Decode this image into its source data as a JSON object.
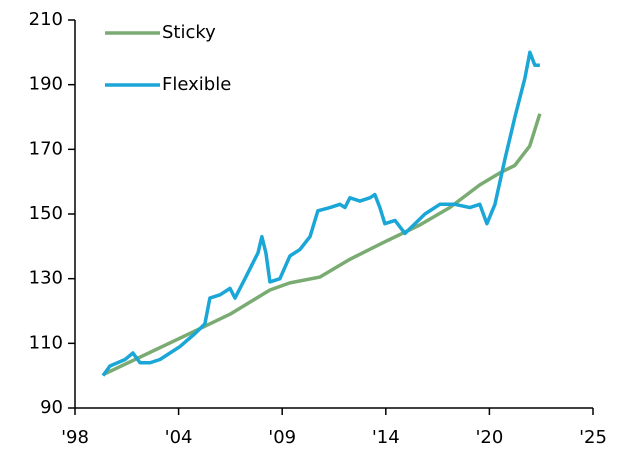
{
  "chart_data": {
    "type": "line",
    "series": [
      {
        "name": "Sticky",
        "color": "#7aab72",
        "x": [
          1999.46,
          2003.47,
          2006.08,
          2008.16,
          2009.2,
          2010.77,
          2012.33,
          2014.15,
          2015.97,
          2017.54,
          2019.1,
          2020.14,
          2020.92,
          2021.7,
          2022.23
        ],
        "values": [
          100.3,
          111.6,
          119,
          126.5,
          128.7,
          130.5,
          136,
          141.4,
          146.6,
          152,
          159,
          162.7,
          165,
          171,
          181
        ]
      },
      {
        "name": "Flexible",
        "color": "#1aa6d6",
        "x": [
          1999.46,
          1999.82,
          2000.61,
          2001.02,
          2001.39,
          2001.91,
          2002.43,
          2002.95,
          2003.47,
          2004.25,
          2004.77,
          2005.03,
          2005.56,
          2006.08,
          2006.34,
          2006.86,
          2007.54,
          2007.74,
          2007.95,
          2008.16,
          2008.68,
          2009.2,
          2009.72,
          2010.25,
          2010.66,
          2011.29,
          2011.81,
          2012.07,
          2012.33,
          2012.85,
          2013.37,
          2013.63,
          2013.89,
          2014.15,
          2014.68,
          2015.2,
          2015.72,
          2016.24,
          2017.02,
          2017.8,
          2018.58,
          2019.1,
          2019.47,
          2019.89,
          2020.41,
          2020.93,
          2021.45,
          2021.71,
          2021.97,
          2022.23
        ],
        "values": [
          100,
          103,
          105,
          107,
          104,
          104,
          105,
          107,
          109,
          113,
          116,
          124,
          125,
          127,
          124,
          130,
          138,
          143,
          138,
          129,
          130,
          137,
          139,
          143,
          151,
          152,
          153,
          152,
          155,
          154,
          155,
          156,
          152,
          147,
          148,
          144,
          147,
          150,
          153,
          153,
          152,
          153,
          147,
          153,
          167,
          180,
          192,
          200,
          196,
          196
        ]
      }
    ],
    "xlim": [
      1998,
      2025
    ],
    "xticks": [
      {
        "value": 1998,
        "label": "'98"
      },
      {
        "value": 2003.4,
        "label": "'04"
      },
      {
        "value": 2008.8,
        "label": "'09"
      },
      {
        "value": 2014.2,
        "label": "'14"
      },
      {
        "value": 2019.6,
        "label": "'20"
      },
      {
        "value": 2025,
        "label": "'25"
      }
    ],
    "ylim": [
      90,
      210
    ],
    "yticks": [
      90,
      110,
      130,
      150,
      170,
      190,
      210
    ],
    "grid": false
  }
}
